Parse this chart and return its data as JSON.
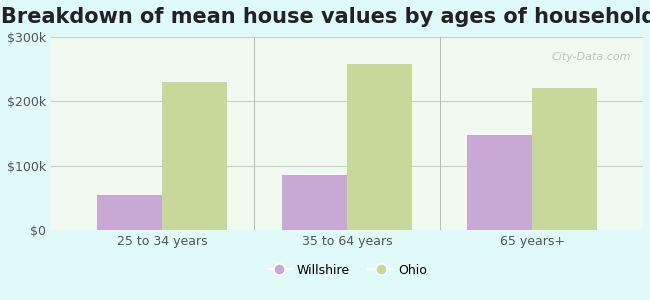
{
  "title": "Breakdown of mean house values by ages of householders",
  "categories": [
    "25 to 34 years",
    "35 to 64 years",
    "65 years+"
  ],
  "series": {
    "Willshire": [
      55000,
      85000,
      148000
    ],
    "Ohio": [
      230000,
      258000,
      220000
    ]
  },
  "bar_colors": {
    "Willshire": "#c9a8d4",
    "Ohio": "#c8d89a"
  },
  "ylim": [
    0,
    300000
  ],
  "yticks": [
    0,
    100000,
    200000,
    300000
  ],
  "ytick_labels": [
    "$0",
    "$100k",
    "$200k",
    "$300k"
  ],
  "background_color": "#e0fafa",
  "plot_bg_color": "#f0faf0",
  "title_fontsize": 15,
  "bar_width": 0.35,
  "watermark": "City-Data.com"
}
